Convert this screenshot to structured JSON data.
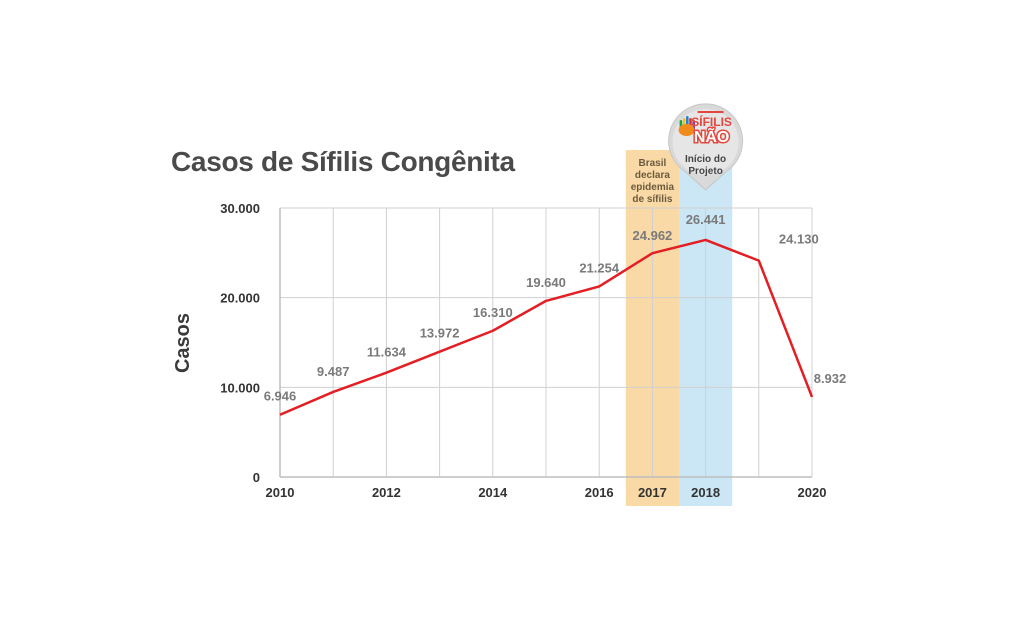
{
  "chart_data": {
    "type": "line",
    "title": "Casos de Sífilis Congênita",
    "ylabel": "Casos",
    "xlabel": "",
    "xlim": [
      2010,
      2020
    ],
    "ylim": [
      0,
      30000
    ],
    "grid": true,
    "x_ticks": [
      2010,
      2012,
      2014,
      2016,
      2017,
      2018,
      2020
    ],
    "x_tick_labels": [
      "2010",
      "2012",
      "2014",
      "2016",
      "2017",
      "2018",
      "2020"
    ],
    "y_ticks": [
      0,
      10000,
      20000,
      30000
    ],
    "y_tick_labels": [
      "0",
      "10.000",
      "20.000",
      "30.000"
    ],
    "series": [
      {
        "color": "#e31e24",
        "x": [
          2010,
          2011,
          2012,
          2013,
          2014,
          2015,
          2016,
          2017,
          2018,
          2019,
          2020
        ],
        "y": [
          6946,
          9487,
          11634,
          13972,
          16310,
          19640,
          21254,
          24962,
          26441,
          24130,
          8932
        ],
        "labels": [
          "6.946",
          "9.487",
          "11.634",
          "13.972",
          "16.310",
          "19.640",
          "21.254",
          "24.962",
          "26.441",
          "24.130",
          "8.932"
        ]
      }
    ],
    "highlights": [
      {
        "x": 2017,
        "color": "#f9d9a6",
        "text": [
          "Brasil",
          "declara",
          "epidemia",
          "de sífilis"
        ]
      },
      {
        "x": 2018,
        "color": "#cbe7f5",
        "text": []
      }
    ],
    "annotations": [
      {
        "x": 2018,
        "logo_text": [
          "SÍFILIS",
          "NÃO"
        ],
        "text": [
          "Início do",
          "Projeto"
        ]
      }
    ]
  }
}
